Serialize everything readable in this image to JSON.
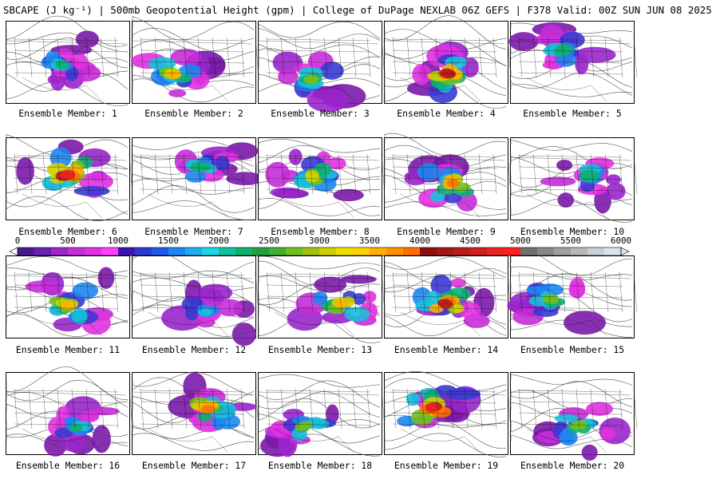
{
  "header": {
    "title": "SBCAPE (J kg⁻¹) | 500mb Geopotential Height (gpm) | College of DuPage NEXLAB 06Z GEFS | F378 Valid: 00Z SUN JUN 08 2025"
  },
  "members": [
    {
      "label": "Ensemble Member: 1",
      "intensity": 0.45,
      "seed": 11
    },
    {
      "label": "Ensemble Member: 2",
      "intensity": 0.65,
      "seed": 23
    },
    {
      "label": "Ensemble Member: 3",
      "intensity": 0.55,
      "seed": 37
    },
    {
      "label": "Ensemble Member: 4",
      "intensity": 0.8,
      "seed": 41
    },
    {
      "label": "Ensemble Member: 5",
      "intensity": 0.5,
      "seed": 53
    },
    {
      "label": "Ensemble Member: 6",
      "intensity": 0.85,
      "seed": 67
    },
    {
      "label": "Ensemble Member: 7",
      "intensity": 0.5,
      "seed": 71
    },
    {
      "label": "Ensemble Member: 8",
      "intensity": 0.6,
      "seed": 83
    },
    {
      "label": "Ensemble Member: 9",
      "intensity": 0.7,
      "seed": 97
    },
    {
      "label": "Ensemble Member: 10",
      "intensity": 0.5,
      "seed": 101
    },
    {
      "label": "Ensemble Member: 11",
      "intensity": 0.65,
      "seed": 113
    },
    {
      "label": "Ensemble Member: 12",
      "intensity": 0.4,
      "seed": 127
    },
    {
      "label": "Ensemble Member: 13",
      "intensity": 0.65,
      "seed": 131
    },
    {
      "label": "Ensemble Member: 14",
      "intensity": 0.8,
      "seed": 149
    },
    {
      "label": "Ensemble Member: 15",
      "intensity": 0.55,
      "seed": 151
    },
    {
      "label": "Ensemble Member: 16",
      "intensity": 0.45,
      "seed": 163
    },
    {
      "label": "Ensemble Member: 17",
      "intensity": 0.7,
      "seed": 173
    },
    {
      "label": "Ensemble Member: 18",
      "intensity": 0.55,
      "seed": 181
    },
    {
      "label": "Ensemble Member: 19",
      "intensity": 0.85,
      "seed": 191
    },
    {
      "label": "Ensemble Member: 20",
      "intensity": 0.55,
      "seed": 199
    }
  ],
  "colorbar": {
    "labels": [
      "0",
      "500",
      "1000",
      "1500",
      "2000",
      "2500",
      "3000",
      "3500",
      "4000",
      "4500",
      "5000",
      "5500",
      "6000"
    ],
    "colors": [
      "#4a1a8a",
      "#6a20b0",
      "#9a26cc",
      "#c62ed8",
      "#e032e0",
      "#ff40ff",
      "#3a14b0",
      "#2a3ad0",
      "#1e5ae8",
      "#1a86f0",
      "#18b0f0",
      "#1ad6e8",
      "#10c0a0",
      "#10b070",
      "#20a040",
      "#40b030",
      "#70c020",
      "#a0c010",
      "#d0d000",
      "#f0e000",
      "#ffd000",
      "#ffb000",
      "#ff9000",
      "#ff7000",
      "#8a1010",
      "#a01818",
      "#b81c1c",
      "#d02020",
      "#e82424",
      "#ff2020",
      "#707070",
      "#888888",
      "#a0a0a0",
      "#b8b8b8",
      "#c8d0d8",
      "#d8e4ec"
    ]
  }
}
